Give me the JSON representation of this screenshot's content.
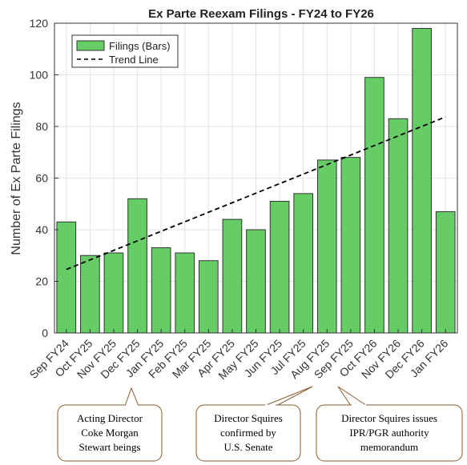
{
  "chart_data": {
    "type": "bar",
    "title": "Ex Parte Reexam Filings - FY24 to FY26",
    "xlabel": "",
    "ylabel": "Number of Ex Parte Filings",
    "categories": [
      "Sep FY24",
      "Oct FY25",
      "Nov FY25",
      "Dec FY25",
      "Jan FY25",
      "Feb FY25",
      "Mar FY25",
      "Apr FY25",
      "May FY25",
      "Jun FY25",
      "Jul FY25",
      "Aug FY25",
      "Sep FY25",
      "Oct FY26",
      "Nov FY26",
      "Dec FY26",
      "Jan FY26"
    ],
    "series": [
      {
        "name": "Filings (Bars)",
        "values": [
          43,
          30,
          31,
          52,
          33,
          31,
          28,
          44,
          40,
          51,
          54,
          67,
          68,
          99,
          83,
          118,
          47
        ],
        "color": "#66cc66"
      },
      {
        "name": "Trend Line",
        "type": "line",
        "style": "dashed",
        "start_value": 24.6,
        "end_value": 83.7,
        "color": "#000000"
      }
    ],
    "ylim": [
      0,
      120
    ],
    "yticks": [
      0,
      20,
      40,
      60,
      80,
      100,
      120
    ],
    "grid": true,
    "legend": "top-left",
    "annotations": [
      {
        "lines": [
          "Acting Director",
          "Coke Morgan",
          "Stewart beings"
        ],
        "points_to": "Dec FY25"
      },
      {
        "lines": [
          "Director Squires",
          "confirmed by",
          "U.S. Senate"
        ],
        "points_to": "Aug FY25"
      },
      {
        "lines": [
          "Director Squires issues",
          "IPR/PGR authority",
          "memorandum"
        ],
        "points_to": "Sep FY25"
      }
    ]
  }
}
